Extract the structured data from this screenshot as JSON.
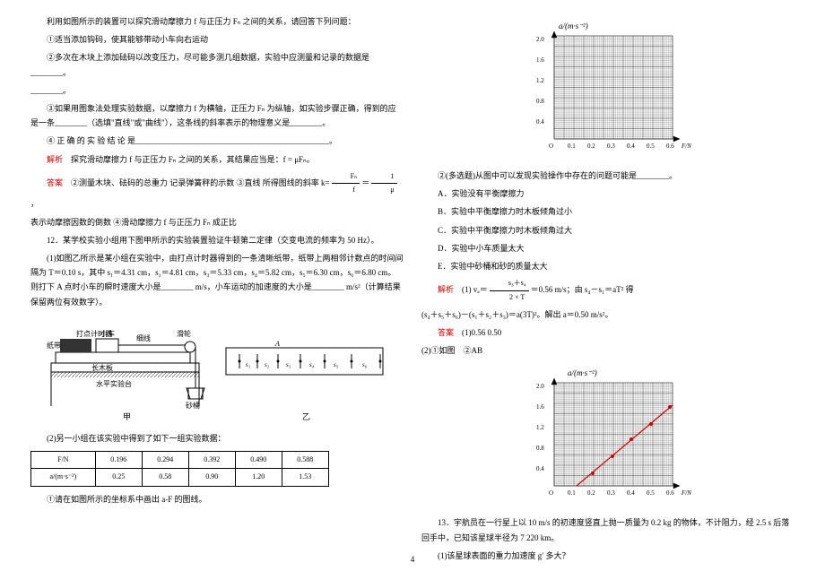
{
  "left": {
    "intro": "利用如图所示的装置可以探究滑动摩擦力 f 与正压力 Fₙ 之间的关系，请回答下列问题：",
    "q1": "①适当添加钩码，使其能够带动小车向右运动",
    "q2": "②多次在木块上添加砝码以改变压力，尽可能多测几组数据，实验中应测量和记录的数据是________。",
    "q3": "③如果用图象法处理实验数据，以摩擦力 f 为横轴，正压力 Fₙ 为纵轴，如实验步骤正确，得到的应是一条________（选填\"直线\"或\"曲线\"），这条线的斜率表示的物理意义是________。",
    "q4": "④ 正 确 的 实 验 结 论 是________________________________________________。",
    "analysis_label": "解析",
    "analysis": "探究滑动摩擦力 f 与正压力 Fₙ 之间的关系，其结果应当是：f = μFₙ。",
    "answer_label": "答案",
    "answer": "②测量木块、砝码的总重力 记录弹簧秤的示数 ③直线 所得图线的斜率 k=",
    "answer_cont": "表示动摩擦因数的倒数 ④滑动摩擦力 f 与正压力 Fₙ 成正比",
    "q12": "12．某学校实验小组用下图甲所示的实验装置验证牛顿第二定律（交变电流的频率为 50 Hz）。",
    "q12_1": "(1)如图乙所示是某小组在实验中，由打点计时器得到的一条清晰纸带，纸带上两相邻计数点的时间间隔为 T＝0.10 s，其中 s₁＝4.31 cm，s₂＝4.81 cm，s₃＝5.33 cm，s₄＝5.82 cm，s₅＝6.30 cm，s₆＝6.80 cm。则打下 A 点时小车的瞬时速度大小是________ m/s，小车运动的加速度的大小是________ m/s²（计算结果保留两位有效数字）。",
    "q12_2": "(2)另一小组在该实验中得到了如下一组实验数据：",
    "table_h1": "F/N",
    "table_h2": "a/(m·s⁻²)",
    "t_r1": [
      "0.196",
      "0.294",
      "0.392",
      "0.490",
      "0.588"
    ],
    "t_r2": [
      "0.25",
      "0.58",
      "0.90",
      "1.20",
      "1.53"
    ],
    "q12_2_1": "①请在如图所示的坐标系中画出 a-F 的图线。",
    "diagram_labels": {
      "timer": "打点计时器",
      "cart": "小车",
      "string": "细线",
      "pulley": "滑轮",
      "tape": "纸带",
      "board": "长木板",
      "table": "水平实验台",
      "bucket": "砂桶",
      "jia": "甲",
      "yi": "乙"
    }
  },
  "right": {
    "chart1": {
      "ylabel": "a/(m·s⁻²)",
      "xlabel": "F/N",
      "yticks": [
        "0.4",
        "0.8",
        "1.2",
        "1.6",
        "2.0"
      ],
      "xticks": [
        "0.1",
        "0.2",
        "0.3",
        "0.4",
        "0.5",
        "0.6"
      ]
    },
    "q_multi": "②(多选题)从图中可以发现实验操作中存在的问题可能是________。",
    "optA": "A．实验没有平衡摩擦力",
    "optB": "B．实验中平衡摩擦力时木板倾角过小",
    "optC": "C．实验中平衡摩擦力时木板倾角过大",
    "optD": "D．实验中小车质量太大",
    "optE": "E．实验中砂桶和砂的质量太大",
    "analysis_label": "解析",
    "analysis1": "(1) vₐ＝",
    "analysis1b": "＝0.56 m/s；由 s₄－s₁＝aT² 得",
    "analysis2": "(s₄＋s₅＋s₆)－(s₁＋s₂＋s₃)＝a(3T)²。解出 a＝0.50 m/s²。",
    "answer_label": "答案",
    "answer": "(1)0.56  0.50",
    "answer2": "(2)①如图　②AB",
    "chart2": {
      "ylabel": "a/(m·s⁻²)",
      "xlabel": "F/N",
      "yticks": [
        "0.4",
        "0.8",
        "1.2",
        "1.6",
        "2.0"
      ],
      "xticks": [
        "0.1",
        "0.2",
        "0.3",
        "0.4",
        "0.5",
        "0.6"
      ],
      "line_color": "#c00",
      "points": [
        [
          0.196,
          0.25
        ],
        [
          0.294,
          0.58
        ],
        [
          0.392,
          0.9
        ],
        [
          0.49,
          1.2
        ],
        [
          0.588,
          1.53
        ]
      ]
    },
    "q13": "13．宇航员在一行星上以 10  m/s 的初速度竖直上抛一质量为 0.2 kg 的物体，不计阻力，经 2.5 s 后落回手中，已知该星球半径为 7 220 km。",
    "q13_1": "(1)该星球表面的重力加速度 g′ 多大？"
  },
  "pageno": "4"
}
